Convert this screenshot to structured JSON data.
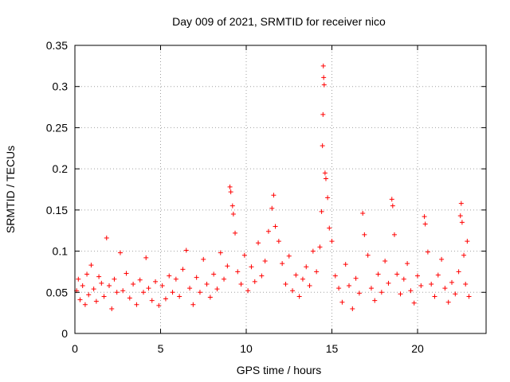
{
  "chart_data": {
    "type": "scatter",
    "title": "Day 009 of 2021, SRMTID for receiver nico",
    "xlabel": "GPS time / hours",
    "ylabel": "SRMTID / TECUs",
    "xlim": [
      0,
      24
    ],
    "ylim": [
      0,
      0.35
    ],
    "xticks": [
      0,
      5,
      10,
      15,
      20
    ],
    "xtick_labels": [
      "0",
      "5",
      "10",
      "15",
      "20"
    ],
    "yticks": [
      0,
      0.05,
      0.1,
      0.15,
      0.2,
      0.25,
      0.3,
      0.35
    ],
    "ytick_labels": [
      "0",
      "0.05",
      "0.1",
      "0.15",
      "0.2",
      "0.25",
      "0.3",
      "0.35"
    ],
    "grid": true,
    "marker": "+",
    "color": "#ff0000",
    "series": [
      {
        "name": "SRMTID",
        "points": [
          [
            0.1,
            0.052
          ],
          [
            0.2,
            0.066
          ],
          [
            0.3,
            0.041
          ],
          [
            0.45,
            0.058
          ],
          [
            0.6,
            0.035
          ],
          [
            0.7,
            0.072
          ],
          [
            0.8,
            0.047
          ],
          [
            0.95,
            0.083
          ],
          [
            1.1,
            0.054
          ],
          [
            1.25,
            0.039
          ],
          [
            1.4,
            0.069
          ],
          [
            1.55,
            0.061
          ],
          [
            1.7,
            0.045
          ],
          [
            1.85,
            0.116
          ],
          [
            2.0,
            0.058
          ],
          [
            2.15,
            0.03
          ],
          [
            2.3,
            0.066
          ],
          [
            2.45,
            0.05
          ],
          [
            2.65,
            0.098
          ],
          [
            2.8,
            0.052
          ],
          [
            3.0,
            0.073
          ],
          [
            3.2,
            0.043
          ],
          [
            3.4,
            0.06
          ],
          [
            3.6,
            0.035
          ],
          [
            3.8,
            0.065
          ],
          [
            4.0,
            0.05
          ],
          [
            4.15,
            0.092
          ],
          [
            4.3,
            0.055
          ],
          [
            4.5,
            0.04
          ],
          [
            4.7,
            0.063
          ],
          [
            4.9,
            0.034
          ],
          [
            5.1,
            0.058
          ],
          [
            5.3,
            0.042
          ],
          [
            5.5,
            0.07
          ],
          [
            5.7,
            0.05
          ],
          [
            5.9,
            0.066
          ],
          [
            6.1,
            0.045
          ],
          [
            6.3,
            0.078
          ],
          [
            6.5,
            0.101
          ],
          [
            6.7,
            0.055
          ],
          [
            6.9,
            0.035
          ],
          [
            7.1,
            0.068
          ],
          [
            7.3,
            0.05
          ],
          [
            7.5,
            0.09
          ],
          [
            7.7,
            0.06
          ],
          [
            7.9,
            0.044
          ],
          [
            8.1,
            0.072
          ],
          [
            8.3,
            0.054
          ],
          [
            8.5,
            0.098
          ],
          [
            8.7,
            0.066
          ],
          [
            8.9,
            0.082
          ],
          [
            9.05,
            0.178
          ],
          [
            9.1,
            0.172
          ],
          [
            9.2,
            0.155
          ],
          [
            9.25,
            0.145
          ],
          [
            9.35,
            0.122
          ],
          [
            9.5,
            0.075
          ],
          [
            9.7,
            0.06
          ],
          [
            9.9,
            0.095
          ],
          [
            10.1,
            0.052
          ],
          [
            10.3,
            0.081
          ],
          [
            10.5,
            0.063
          ],
          [
            10.7,
            0.11
          ],
          [
            10.9,
            0.07
          ],
          [
            11.1,
            0.088
          ],
          [
            11.3,
            0.124
          ],
          [
            11.5,
            0.152
          ],
          [
            11.6,
            0.168
          ],
          [
            11.7,
            0.13
          ],
          [
            11.9,
            0.112
          ],
          [
            12.1,
            0.085
          ],
          [
            12.3,
            0.06
          ],
          [
            12.5,
            0.094
          ],
          [
            12.7,
            0.052
          ],
          [
            12.9,
            0.071
          ],
          [
            13.1,
            0.045
          ],
          [
            13.3,
            0.066
          ],
          [
            13.5,
            0.081
          ],
          [
            13.7,
            0.058
          ],
          [
            13.9,
            0.1
          ],
          [
            14.1,
            0.075
          ],
          [
            14.3,
            0.105
          ],
          [
            14.4,
            0.148
          ],
          [
            14.45,
            0.228
          ],
          [
            14.48,
            0.266
          ],
          [
            14.5,
            0.325
          ],
          [
            14.52,
            0.311
          ],
          [
            14.55,
            0.302
          ],
          [
            14.6,
            0.195
          ],
          [
            14.65,
            0.188
          ],
          [
            14.75,
            0.165
          ],
          [
            14.85,
            0.128
          ],
          [
            15.0,
            0.112
          ],
          [
            15.2,
            0.07
          ],
          [
            15.4,
            0.055
          ],
          [
            15.6,
            0.038
          ],
          [
            15.8,
            0.084
          ],
          [
            16.0,
            0.058
          ],
          [
            16.2,
            0.03
          ],
          [
            16.4,
            0.067
          ],
          [
            16.6,
            0.049
          ],
          [
            16.8,
            0.146
          ],
          [
            16.9,
            0.12
          ],
          [
            17.1,
            0.095
          ],
          [
            17.3,
            0.055
          ],
          [
            17.5,
            0.04
          ],
          [
            17.7,
            0.072
          ],
          [
            17.9,
            0.05
          ],
          [
            18.1,
            0.088
          ],
          [
            18.3,
            0.061
          ],
          [
            18.5,
            0.163
          ],
          [
            18.55,
            0.155
          ],
          [
            18.65,
            0.12
          ],
          [
            18.8,
            0.072
          ],
          [
            19.0,
            0.048
          ],
          [
            19.2,
            0.066
          ],
          [
            19.4,
            0.085
          ],
          [
            19.6,
            0.052
          ],
          [
            19.8,
            0.037
          ],
          [
            20.0,
            0.07
          ],
          [
            20.2,
            0.058
          ],
          [
            20.4,
            0.142
          ],
          [
            20.45,
            0.133
          ],
          [
            20.6,
            0.099
          ],
          [
            20.8,
            0.06
          ],
          [
            21.0,
            0.045
          ],
          [
            21.2,
            0.071
          ],
          [
            21.4,
            0.09
          ],
          [
            21.6,
            0.055
          ],
          [
            21.8,
            0.038
          ],
          [
            22.0,
            0.062
          ],
          [
            22.2,
            0.048
          ],
          [
            22.4,
            0.075
          ],
          [
            22.5,
            0.143
          ],
          [
            22.55,
            0.158
          ],
          [
            22.6,
            0.135
          ],
          [
            22.7,
            0.095
          ],
          [
            22.8,
            0.06
          ],
          [
            22.9,
            0.112
          ],
          [
            23.0,
            0.045
          ]
        ]
      }
    ]
  }
}
